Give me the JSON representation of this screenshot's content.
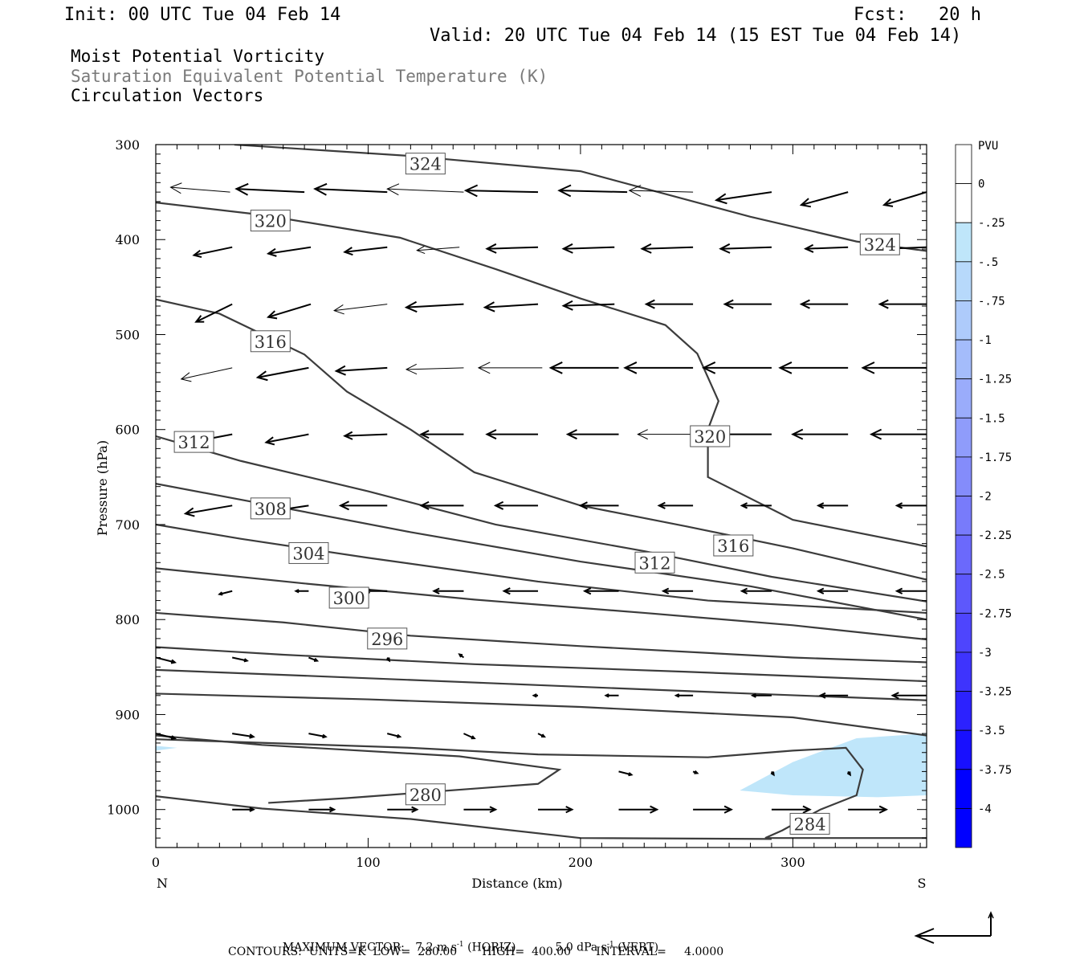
{
  "header": {
    "init": "Init: 00 UTC Tue 04 Feb 14",
    "fcst": "Fcst:   20 h",
    "valid": "Valid: 20 UTC Tue 04 Feb 14 (15 EST Tue 04 Feb 14)"
  },
  "titles": {
    "line1": "Moist Potential Vorticity",
    "line2": "Saturation Equivalent Potential Temperature (K)",
    "line3": "Circulation Vectors"
  },
  "footer": {
    "max_label": "MAXIMUM VECTOR:",
    "horiz": "7.2 m s",
    "horiz_unit": " (HORIZ)",
    "vert": "5.0 dPa s",
    "vert_unit": " (VERT)",
    "contours": "CONTOURS:  UNITS=K  LOW=  280.00       HIGH=  400.00       INTERVAL=     4.0000"
  },
  "chart_data": {
    "type": "cross-section",
    "xlabel": "Distance (km)",
    "ylabel": "Pressure (hPa)",
    "x_left_label": "N",
    "x_right_label": "S",
    "xlim": [
      0,
      363
    ],
    "ylim": [
      1040,
      300
    ],
    "x_ticks": [
      0,
      100,
      200,
      300
    ],
    "y_ticks": [
      300,
      400,
      500,
      600,
      700,
      800,
      900,
      1000
    ],
    "colorbar": {
      "unit": "PVU",
      "levels": [
        "0",
        "-.25",
        "-.5",
        "-.75",
        "-1",
        "-1.25",
        "-1.5",
        "-1.75",
        "-2",
        "-2.25",
        "-2.5",
        "-2.75",
        "-3",
        "-3.25",
        "-3.5",
        "-3.75",
        "-4"
      ],
      "colors": [
        "#ffffff",
        "#ffffff",
        "#bfe6fa",
        "#b7d9fb",
        "#aecbfb",
        "#a4bcfb",
        "#9aacfb",
        "#8f9cfb",
        "#848cfb",
        "#787bfb",
        "#6b69fc",
        "#5d58fc",
        "#4e45fd",
        "#3e34fd",
        "#2c22fe",
        "#1810fe",
        "#0000ff"
      ]
    },
    "contours": [
      {
        "label": "324",
        "points": [
          [
            37,
            300
          ],
          [
            120,
            312
          ],
          [
            200,
            328
          ],
          [
            280,
            376
          ],
          [
            330,
            402
          ],
          [
            363,
            412
          ]
        ],
        "label_at": [
          [
            127,
            320
          ],
          [
            341,
            405
          ]
        ]
      },
      {
        "label": "320",
        "points": [
          [
            0,
            361
          ],
          [
            50,
            374
          ],
          [
            115,
            398
          ],
          [
            160,
            431
          ],
          [
            200,
            462
          ],
          [
            240,
            490
          ],
          [
            255,
            520
          ],
          [
            265,
            570
          ],
          [
            260,
            600
          ],
          [
            260,
            650
          ],
          [
            300,
            695
          ],
          [
            363,
            723
          ]
        ],
        "label_at": [
          [
            54,
            380
          ],
          [
            261,
            607
          ]
        ]
      },
      {
        "label": "316",
        "points": [
          [
            0,
            463
          ],
          [
            30,
            478
          ],
          [
            70,
            521
          ],
          [
            90,
            560
          ],
          [
            120,
            600
          ],
          [
            150,
            645
          ],
          [
            200,
            680
          ],
          [
            250,
            702
          ],
          [
            300,
            725
          ],
          [
            363,
            758
          ]
        ],
        "label_at": [
          [
            54,
            507
          ],
          [
            272,
            722
          ]
        ]
      },
      {
        "label": "312",
        "points": [
          [
            0,
            607
          ],
          [
            40,
            633
          ],
          [
            100,
            665
          ],
          [
            160,
            700
          ],
          [
            230,
            728
          ],
          [
            290,
            755
          ],
          [
            363,
            781
          ]
        ],
        "label_at": [
          [
            18,
            613
          ],
          [
            235,
            740
          ]
        ]
      },
      {
        "label": "308",
        "points": [
          [
            0,
            657
          ],
          [
            50,
            678
          ],
          [
            120,
            708
          ],
          [
            200,
            739
          ],
          [
            280,
            765
          ],
          [
            363,
            800
          ]
        ],
        "label_at": [
          [
            54,
            683
          ]
        ]
      },
      {
        "label": "304",
        "points": [
          [
            0,
            700
          ],
          [
            40,
            715
          ],
          [
            100,
            735
          ],
          [
            180,
            760
          ],
          [
            260,
            780
          ],
          [
            363,
            793
          ]
        ],
        "label_at": [
          [
            72,
            730
          ]
        ]
      },
      {
        "label": "300",
        "points": [
          [
            0,
            746
          ],
          [
            70,
            762
          ],
          [
            150,
            779
          ],
          [
            230,
            793
          ],
          [
            300,
            806
          ],
          [
            363,
            821
          ]
        ],
        "label_at": [
          [
            91,
            777
          ]
        ]
      },
      {
        "label": "296",
        "points": [
          [
            0,
            793
          ],
          [
            60,
            803
          ],
          [
            120,
            817
          ],
          [
            200,
            828
          ],
          [
            300,
            840
          ],
          [
            363,
            845
          ]
        ],
        "label_at": [
          [
            109,
            820
          ]
        ]
      },
      {
        "label": "",
        "points": [
          [
            0,
            829
          ],
          [
            60,
            837
          ],
          [
            150,
            847
          ],
          [
            250,
            855
          ],
          [
            363,
            865
          ]
        ],
        "label_at": []
      },
      {
        "label": "",
        "points": [
          [
            0,
            853
          ],
          [
            80,
            860
          ],
          [
            180,
            869
          ],
          [
            280,
            878
          ],
          [
            363,
            885
          ]
        ],
        "label_at": []
      },
      {
        "label": "",
        "points": [
          [
            0,
            878
          ],
          [
            100,
            884
          ],
          [
            200,
            892
          ],
          [
            300,
            903
          ],
          [
            363,
            922
          ]
        ],
        "label_at": []
      },
      {
        "label": "",
        "points": [
          [
            0,
            922
          ],
          [
            50,
            932
          ],
          [
            143,
            944
          ],
          [
            190,
            958
          ],
          [
            180,
            973
          ],
          [
            150,
            978
          ],
          [
            120,
            983
          ],
          [
            90,
            988
          ],
          [
            53,
            993
          ]
        ],
        "label_at": []
      },
      {
        "label": "280",
        "points": [],
        "label_at": [
          [
            127,
            984
          ]
        ]
      },
      {
        "label": "",
        "points": [
          [
            0,
            926
          ],
          [
            120,
            935
          ],
          [
            180,
            942
          ],
          [
            260,
            945
          ],
          [
            300,
            938
          ],
          [
            325,
            935
          ],
          [
            333,
            958
          ],
          [
            330,
            985
          ],
          [
            313,
            1000
          ],
          [
            295,
            1022
          ],
          [
            287,
            1030
          ],
          [
            363,
            1030
          ]
        ],
        "label_at": []
      },
      {
        "label": "284",
        "points": [],
        "label_at": [
          [
            308,
            1015
          ]
        ]
      },
      {
        "label": "",
        "points": [
          [
            0,
            986
          ],
          [
            50,
            999
          ],
          [
            120,
            1010
          ],
          [
            200,
            1030
          ],
          [
            290,
            1031
          ]
        ],
        "label_at": []
      }
    ],
    "vectors": [
      {
        "p": 350,
        "x": [
          35,
          70,
          109,
          145,
          180,
          222,
          253,
          290,
          326,
          363
        ],
        "dx": [
          -28,
          -32,
          -34,
          -36,
          -34,
          -32,
          -30,
          -26,
          -22,
          -20
        ],
        "dy": [
          -0.3,
          -0.2,
          -0.2,
          -0.2,
          -0.1,
          -0.1,
          -0.1,
          0.5,
          0.8,
          0.8
        ],
        "thin": [
          1,
          0,
          0,
          1,
          0,
          0,
          1,
          0,
          0,
          0
        ]
      },
      {
        "p": 408,
        "x": [
          36,
          73,
          109,
          143,
          180,
          216,
          253,
          290,
          326,
          363
        ],
        "dx": [
          -18,
          -20,
          -20,
          -20,
          -24,
          -24,
          -24,
          -24,
          -20,
          -20
        ],
        "dy": [
          0.5,
          0.4,
          0.3,
          0.2,
          0.1,
          0.1,
          0.1,
          0.1,
          0.1,
          0.1
        ],
        "thin": [
          0,
          0,
          0,
          1,
          0,
          0,
          0,
          0,
          0,
          0
        ]
      },
      {
        "p": 468,
        "x": [
          36,
          73,
          109,
          145,
          180,
          216,
          253,
          290,
          326,
          363
        ],
        "dx": [
          -17,
          -20,
          -25,
          -27,
          -25,
          -24,
          -22,
          -22,
          -22,
          -22
        ],
        "dy": [
          1.1,
          0.8,
          0.4,
          0.2,
          0.2,
          0.1,
          0.0,
          0.0,
          0.0,
          0.0
        ],
        "thin": [
          0,
          0,
          1,
          0,
          0,
          0,
          0,
          0,
          0,
          0
        ]
      },
      {
        "p": 535,
        "x": [
          36,
          72,
          109,
          145,
          182,
          218,
          253,
          290,
          326,
          363
        ],
        "dx": [
          -24,
          -24,
          -24,
          -27,
          -30,
          -32,
          -32,
          -32,
          -32,
          -30
        ],
        "dy": [
          0.7,
          0.6,
          0.2,
          0.1,
          0.0,
          0.0,
          0.0,
          0.0,
          0.0,
          0.0
        ],
        "thin": [
          1,
          0,
          0,
          1,
          1,
          0,
          0,
          0,
          0,
          0
        ]
      },
      {
        "p": 605,
        "x": [
          36,
          72,
          109,
          145,
          180,
          218,
          253,
          290,
          326,
          363
        ],
        "dx": [
          -24,
          -20,
          -20,
          -20,
          -24,
          -24,
          -26,
          -26,
          -26,
          -26
        ],
        "dy": [
          0.6,
          0.5,
          0.1,
          0.0,
          0.0,
          0.0,
          0.0,
          0.0,
          0.0,
          0.0
        ],
        "thin": [
          0,
          0,
          0,
          0,
          0,
          0,
          1,
          0,
          0,
          0
        ]
      },
      {
        "p": 680,
        "x": [
          36,
          72,
          109,
          145,
          180,
          218,
          253,
          290,
          326,
          363
        ],
        "dx": [
          -22,
          -20,
          -22,
          -20,
          -20,
          -18,
          -16,
          -14,
          -14,
          -14
        ],
        "dy": [
          0.5,
          0.4,
          0.0,
          0.0,
          0.0,
          0.0,
          0.0,
          0.0,
          0.0,
          0.0
        ],
        "thin": [
          0,
          0,
          0,
          0,
          0,
          0,
          0,
          0,
          0,
          0
        ]
      },
      {
        "p": 770,
        "x": [
          36,
          72,
          109,
          145,
          180,
          218,
          253,
          290,
          326,
          363
        ],
        "dx": [
          -6,
          -6,
          -10,
          -14,
          -16,
          -16,
          -14,
          -14,
          -14,
          -14
        ],
        "dy": [
          0.2,
          0.0,
          0.0,
          0.0,
          0.0,
          0.0,
          0.0,
          0.0,
          0.0,
          0.0
        ],
        "thin": [
          0,
          0,
          0,
          0,
          0,
          0,
          0,
          0,
          0,
          0
        ]
      },
      {
        "p": 840,
        "x": [
          0,
          36,
          72,
          109,
          145
        ],
        "dx": [
          9,
          7,
          4,
          1,
          -2
        ],
        "dy": [
          0.3,
          0.2,
          0.2,
          0.2,
          -0.2
        ],
        "thin": [
          0,
          0,
          0,
          0,
          0
        ]
      },
      {
        "p": 880,
        "x": [
          180,
          218,
          253,
          290,
          326,
          363
        ],
        "dx": [
          -2,
          -6,
          -8,
          -9,
          -13,
          -16
        ],
        "dy": [
          0.0,
          0.0,
          0.0,
          0.0,
          0.0,
          0.0
        ],
        "thin": [
          0,
          0,
          0,
          0,
          0,
          0
        ]
      },
      {
        "p": 920,
        "x": [
          0,
          36,
          72,
          109,
          145,
          180
        ],
        "dx": [
          9,
          10,
          8,
          6,
          5,
          3
        ],
        "dy": [
          0.3,
          0.2,
          0.2,
          0.2,
          0.3,
          0.2
        ],
        "thin": [
          0,
          0,
          0,
          0,
          0,
          0
        ]
      },
      {
        "p": 960,
        "x": [
          218,
          253,
          290,
          326
        ],
        "dx": [
          6,
          2,
          1,
          1
        ],
        "dy": [
          0.2,
          0.1,
          0.2,
          0.2
        ],
        "thin": [
          0,
          0,
          0,
          0
        ]
      },
      {
        "p": 1000,
        "x": [
          36,
          72,
          109,
          145,
          180,
          218,
          253,
          290,
          326
        ],
        "dx": [
          10,
          12,
          14,
          15,
          16,
          18,
          18,
          18,
          18
        ],
        "dy": [
          0.0,
          0.0,
          0.0,
          0.0,
          0.0,
          0.0,
          0.0,
          0.0,
          0.0
        ],
        "thin": [
          0,
          0,
          0,
          0,
          0,
          0,
          0,
          0,
          0
        ]
      }
    ],
    "pv_regions": [
      {
        "level": "-.5",
        "points": [
          [
            0,
            933
          ],
          [
            10,
            935
          ],
          [
            0,
            938
          ]
        ]
      },
      {
        "level": "-.5",
        "points": [
          [
            275,
            980
          ],
          [
            300,
            950
          ],
          [
            330,
            925
          ],
          [
            363,
            920
          ],
          [
            363,
            985
          ],
          [
            340,
            987
          ],
          [
            300,
            985
          ]
        ]
      }
    ]
  }
}
